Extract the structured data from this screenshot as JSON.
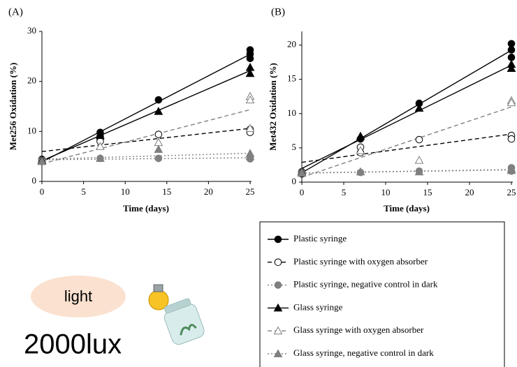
{
  "chart_data": [
    {
      "type": "scatter",
      "title": "(A)",
      "x_label": "Time (days)",
      "y_label": "Met256 Oxidation (%)",
      "xlim": [
        0,
        25
      ],
      "xticks": [
        0,
        5,
        10,
        15,
        20,
        25
      ],
      "ylim": [
        0,
        30
      ],
      "yticks": [
        0,
        10,
        20,
        30
      ],
      "trend_lines": true,
      "series": [
        {
          "name": "Plastic syringe",
          "color": "#000000",
          "marker": "circle",
          "filled": true,
          "dash": "solid",
          "x": [
            0,
            0,
            7,
            7,
            14,
            25,
            25,
            25
          ],
          "values": [
            4.0,
            4.4,
            9.8,
            9.0,
            16.3,
            26.3,
            25.5,
            24.6
          ]
        },
        {
          "name": "Plastic syringe with oxygen absorber",
          "color": "#000000",
          "marker": "circle",
          "filled": false,
          "dash": "dashed",
          "x": [
            0,
            7,
            7,
            14,
            25,
            25
          ],
          "values": [
            4.2,
            8.5,
            8.0,
            9.4,
            10.4,
            9.8
          ]
        },
        {
          "name": "Plastic syringe, negative control in dark",
          "color": "#808080",
          "marker": "circle",
          "filled": true,
          "dash": "dotted",
          "x": [
            0,
            7,
            14,
            25,
            25
          ],
          "values": [
            4.2,
            4.6,
            4.6,
            4.9,
            4.5
          ]
        },
        {
          "name": "Glass syringe",
          "color": "#000000",
          "marker": "triangle",
          "filled": true,
          "dash": "solid",
          "x": [
            0,
            7,
            14,
            25,
            25
          ],
          "values": [
            4.2,
            9.2,
            14.0,
            22.8,
            21.6
          ]
        },
        {
          "name": "Glass syringe with oxygen absorber",
          "color": "#808080",
          "marker": "triangle",
          "filled": false,
          "dash": "dashed",
          "x": [
            0,
            7,
            14,
            25,
            25,
            25
          ],
          "values": [
            4.0,
            7.0,
            7.8,
            17.0,
            16.3,
            10.6
          ]
        },
        {
          "name": "Glass syringe, negative control in dark",
          "color": "#808080",
          "marker": "triangle",
          "filled": true,
          "dash": "dotted",
          "x": [
            0,
            7,
            14,
            25,
            25
          ],
          "values": [
            4.0,
            4.6,
            6.4,
            5.6,
            5.0
          ]
        }
      ]
    },
    {
      "type": "scatter",
      "title": "(B)",
      "x_label": "Time (days)",
      "y_label": "Met432 Oxidation (%)",
      "xlim": [
        0,
        25
      ],
      "xticks": [
        0,
        5,
        10,
        15,
        20,
        25
      ],
      "ylim": [
        0,
        22
      ],
      "yticks": [
        0,
        5,
        10,
        15,
        20
      ],
      "trend_lines": true,
      "series": [
        {
          "color": "#000000",
          "marker": "circle",
          "filled": true,
          "dash": "solid",
          "x": [
            0,
            0,
            7,
            14,
            25,
            25,
            25
          ],
          "values": [
            1.5,
            1.2,
            6.3,
            11.5,
            20.2,
            19.3,
            18.2
          ]
        },
        {
          "color": "#000000",
          "marker": "circle",
          "filled": false,
          "dash": "dashed",
          "x": [
            0,
            7,
            7,
            14,
            25,
            25
          ],
          "values": [
            1.5,
            5.1,
            4.3,
            6.2,
            6.8,
            6.3
          ]
        },
        {
          "color": "#808080",
          "marker": "circle",
          "filled": true,
          "dash": "dotted",
          "x": [
            0,
            7,
            14,
            25,
            25
          ],
          "values": [
            1.4,
            1.4,
            1.6,
            2.1,
            1.6
          ]
        },
        {
          "color": "#000000",
          "marker": "triangle",
          "filled": true,
          "dash": "solid",
          "x": [
            0,
            7,
            14,
            25,
            25
          ],
          "values": [
            1.5,
            6.7,
            10.8,
            17.2,
            16.6
          ]
        },
        {
          "color": "#808080",
          "marker": "triangle",
          "filled": false,
          "dash": "dashed",
          "x": [
            0,
            7,
            14,
            25,
            25
          ],
          "values": [
            1.4,
            4.6,
            3.2,
            11.9,
            11.6
          ]
        },
        {
          "color": "#808080",
          "marker": "triangle",
          "filled": true,
          "dash": "dotted",
          "x": [
            0,
            7,
            14,
            25,
            25
          ],
          "values": [
            1.3,
            1.5,
            1.5,
            1.9,
            1.7
          ]
        }
      ]
    }
  ],
  "annotations": {
    "light": "light",
    "illuminance": "2000lux"
  }
}
